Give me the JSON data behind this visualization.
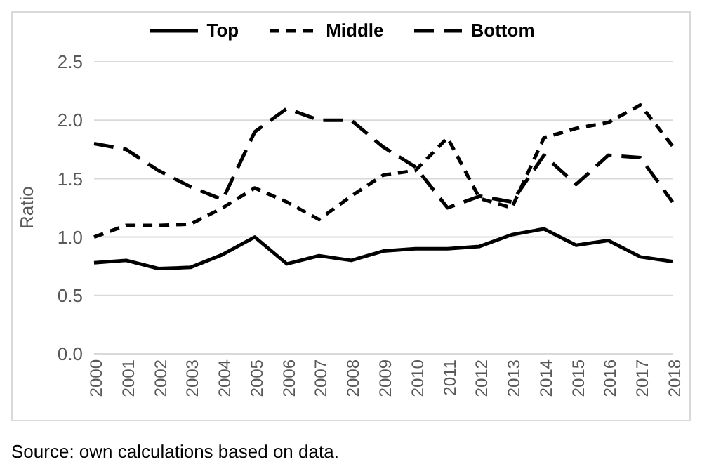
{
  "chart_data": {
    "type": "line",
    "ylabel": "Ratio",
    "categories": [
      "2000",
      "2001",
      "2002",
      "2003",
      "2004",
      "2005",
      "2006",
      "2007",
      "2008",
      "2009",
      "2010",
      "2011",
      "2012",
      "2013",
      "2014",
      "2015",
      "2016",
      "2017",
      "2018"
    ],
    "series": [
      {
        "name": "Top",
        "color": "#000000",
        "line_style": "solid",
        "values": [
          0.78,
          0.8,
          0.73,
          0.74,
          0.85,
          1.0,
          0.77,
          0.84,
          0.8,
          0.88,
          0.9,
          0.9,
          0.92,
          1.02,
          1.07,
          0.93,
          0.97,
          0.83,
          0.79
        ]
      },
      {
        "name": "Middle",
        "color": "#000000",
        "line_style": "dashed",
        "values": [
          1.0,
          1.1,
          1.1,
          1.11,
          1.25,
          1.42,
          1.3,
          1.15,
          1.35,
          1.53,
          1.57,
          1.85,
          1.33,
          1.25,
          1.85,
          1.93,
          1.98,
          2.13,
          1.78
        ]
      },
      {
        "name": "Bottom",
        "color": "#000000",
        "line_style": "dashed",
        "values": [
          1.8,
          1.75,
          1.57,
          1.43,
          1.32,
          1.9,
          2.1,
          2.0,
          2.0,
          1.77,
          1.6,
          1.25,
          1.35,
          1.3,
          1.7,
          1.45,
          1.7,
          1.68,
          1.3
        ]
      }
    ],
    "ylim": [
      0,
      2.5
    ],
    "yticks": [
      {
        "value": 0,
        "label": "0.0"
      },
      0.5,
      {
        "value": 1,
        "label": "1.0"
      },
      1.5,
      {
        "value": 2,
        "label": "2.0"
      },
      2.5
    ],
    "grid": "y",
    "legend": "top",
    "marker": "none",
    "annotations": [
      "Source: own calculations based on data."
    ]
  }
}
